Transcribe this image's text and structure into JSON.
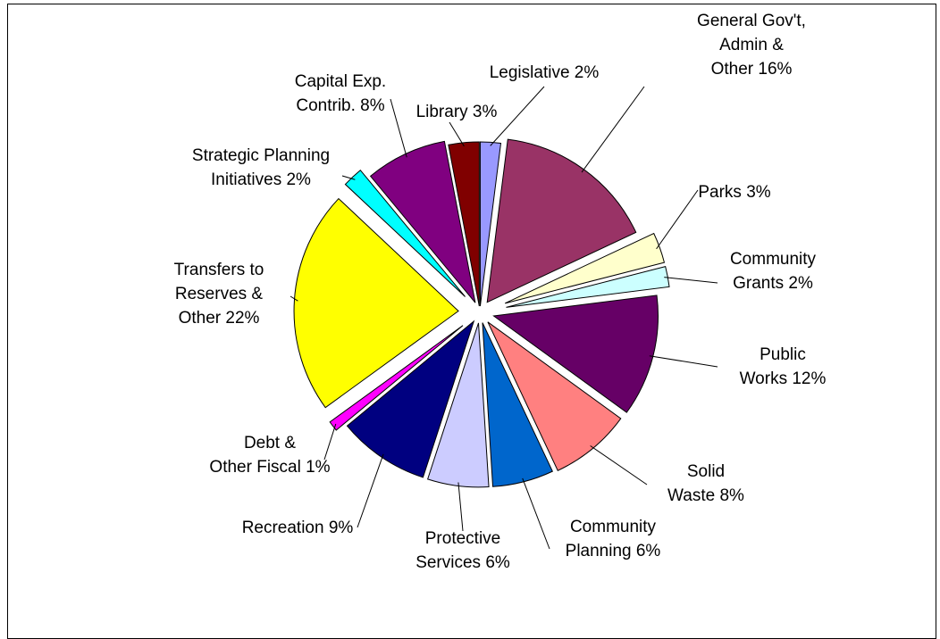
{
  "chart_data": {
    "type": "pie",
    "exploded": true,
    "slices": [
      {
        "label": "Legislative 2%",
        "value": 2,
        "color": "#9999FF"
      },
      {
        "label": "General Gov't, Admin & Other 16%",
        "value": 16,
        "color": "#993366"
      },
      {
        "label": "Parks 3%",
        "value": 3,
        "color": "#FFFFCC"
      },
      {
        "label": "Community Grants 2%",
        "value": 2,
        "color": "#CCFFFF"
      },
      {
        "label": "Public Works 12%",
        "value": 12,
        "color": "#660066"
      },
      {
        "label": "Solid Waste 8%",
        "value": 8,
        "color": "#FF8080"
      },
      {
        "label": "Community Planning 6%",
        "value": 6,
        "color": "#0066CC"
      },
      {
        "label": "Protective Services 6%",
        "value": 6,
        "color": "#CCCCFF"
      },
      {
        "label": "Recreation 9%",
        "value": 9,
        "color": "#000080"
      },
      {
        "label": "Debt & Other Fiscal 1%",
        "value": 1,
        "color": "#FF00FF"
      },
      {
        "label": "Transfers to Reserves & Other 22%",
        "value": 22,
        "color": "#FFFF00"
      },
      {
        "label": "Strategic Planning Initiatives 2%",
        "value": 2,
        "color": "#00FFFF"
      },
      {
        "label": "Capital Exp. Contrib. 8%",
        "value": 8,
        "color": "#800080"
      },
      {
        "label": "Library 3%",
        "value": 3,
        "color": "#800000"
      }
    ]
  }
}
